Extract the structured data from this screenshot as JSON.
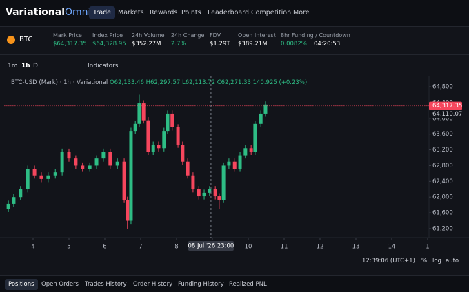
{
  "nav": {
    "brand": "Variational",
    "brand_suffix": "Omni",
    "items": [
      "Trade",
      "Markets",
      "Rewards",
      "Points",
      "Leaderboard",
      "Competition",
      "More"
    ]
  },
  "ticker": {
    "symbol": "BTC",
    "stats": [
      {
        "label": "Mark Price",
        "value": "$64,317.35"
      },
      {
        "label": "Index Price",
        "value": "$64,328.95"
      },
      {
        "label": "24h Volume",
        "value": "$352.27M"
      },
      {
        "label": "24h Change",
        "value": "2.7%"
      },
      {
        "label": "FDV",
        "value": "$1.29T"
      },
      {
        "label": "Open Interest",
        "value": "$389.21M"
      },
      {
        "label": "8hr Funding / Countdown",
        "value": "0.0082%",
        "extra": "04:20:53"
      }
    ]
  },
  "toolbar": {
    "intervals": [
      "1m",
      "1h",
      "D"
    ],
    "indicators": "Indicators"
  },
  "legend": {
    "name": "BTC-USD (Mark) · 1h · Variational",
    "o": "O62,133.46",
    "h": "H62,297.57",
    "l": "L62,113.72",
    "c": "C62,271.33",
    "change": "140.925 (+0.23%)"
  },
  "chart_data": {
    "type": "candlestick",
    "up_color": "#2ebd85",
    "down_color": "#f6465d",
    "x": [
      3.31,
      3.46,
      3.65,
      3.85,
      4.04,
      4.23,
      4.42,
      4.62,
      4.81,
      5.0,
      5.19,
      5.38,
      5.58,
      5.77,
      5.96,
      6.15,
      6.35,
      6.54,
      6.63,
      6.73,
      6.85,
      6.96,
      7.08,
      7.21,
      7.35,
      7.5,
      7.65,
      7.75,
      7.88,
      8.04,
      8.17,
      8.31,
      8.46,
      8.62,
      8.77,
      8.92,
      9.08,
      9.19,
      9.31,
      9.46,
      9.62,
      9.77,
      9.92,
      10.08,
      10.19,
      10.35,
      10.48
    ],
    "open": [
      61700,
      61830,
      62000,
      62200,
      62720,
      62550,
      62460,
      62550,
      62630,
      63150,
      62980,
      62800,
      62720,
      62800,
      62980,
      63150,
      62800,
      62900,
      61930,
      61400,
      63680,
      63860,
      64380,
      63950,
      63150,
      63330,
      63240,
      63680,
      64120,
      63770,
      63330,
      62900,
      62550,
      62200,
      62020,
      62110,
      62200,
      62020,
      61930,
      62800,
      62900,
      62720,
      63060,
      63240,
      63150,
      63860,
      64120
    ],
    "high": [
      61910,
      62080,
      62280,
      62800,
      62800,
      62630,
      62630,
      62710,
      63230,
      63230,
      63060,
      62880,
      62880,
      63060,
      63230,
      63230,
      62980,
      62980,
      62010,
      63760,
      63940,
      64600,
      64460,
      64030,
      63410,
      63410,
      63760,
      64200,
      64200,
      63850,
      63410,
      62980,
      62630,
      62280,
      62190,
      62280,
      62280,
      62100,
      62880,
      62980,
      62980,
      63140,
      63320,
      63320,
      63940,
      64200,
      64430
    ],
    "low": [
      61620,
      61750,
      61920,
      62120,
      62470,
      62380,
      62380,
      62470,
      62550,
      62900,
      62720,
      62640,
      62640,
      62720,
      62900,
      62720,
      62720,
      61850,
      61200,
      61320,
      63600,
      63780,
      63870,
      63070,
      63070,
      63160,
      63160,
      63600,
      63690,
      63250,
      62820,
      62470,
      62120,
      61940,
      61940,
      62030,
      61940,
      61700,
      61850,
      62720,
      62640,
      62640,
      62980,
      63070,
      63070,
      63780,
      64040
    ],
    "close": [
      61830,
      62000,
      62200,
      62720,
      62550,
      62460,
      62550,
      62630,
      63150,
      62980,
      62800,
      62720,
      62800,
      62980,
      63150,
      62800,
      62900,
      61930,
      61400,
      63680,
      63860,
      64380,
      63950,
      63150,
      63330,
      63240,
      63680,
      64120,
      63770,
      63330,
      62900,
      62550,
      62200,
      62020,
      62110,
      62200,
      62020,
      61930,
      62800,
      62900,
      62720,
      63060,
      63240,
      63150,
      63860,
      64120,
      64350
    ],
    "xlim": [
      3.2,
      15.2
    ],
    "ylim": [
      61000,
      65000
    ],
    "xticks": [
      4,
      5,
      6,
      7,
      8,
      9,
      10,
      11,
      12,
      13,
      14,
      {
        "value": 15,
        "label": "1"
      }
    ],
    "yticks": [
      {
        "value": 61200,
        "label": "61,200"
      },
      {
        "value": 61600,
        "label": "61,600"
      },
      {
        "value": 62000,
        "label": "62,000"
      },
      {
        "value": 62400,
        "label": "62,400"
      },
      {
        "value": 62800,
        "label": "62,800"
      },
      {
        "value": 63200,
        "label": "63,200"
      },
      {
        "value": 63600,
        "label": "63,600"
      },
      {
        "value": 64000,
        "label": "64,000"
      },
      {
        "value": 64400,
        "label": "64,400"
      },
      {
        "value": 64800,
        "label": "64,800"
      }
    ],
    "price_lines": [
      {
        "value": 64317.35,
        "label": "64,317.35",
        "color": "#f6465d"
      },
      {
        "value": 64110.07,
        "label": "64,110.07",
        "color": "#9aa0aa"
      }
    ],
    "crosshair": {
      "x": 8.96,
      "label": "08 Jul '26 23:00"
    },
    "grid": false
  },
  "status": {
    "time": "12:39:06 (UTC+1)",
    "options": [
      "%",
      "log",
      "auto"
    ]
  },
  "tabs": [
    "Positions",
    "Open Orders",
    "Trades History",
    "Order History",
    "Funding History",
    "Realized PNL"
  ]
}
